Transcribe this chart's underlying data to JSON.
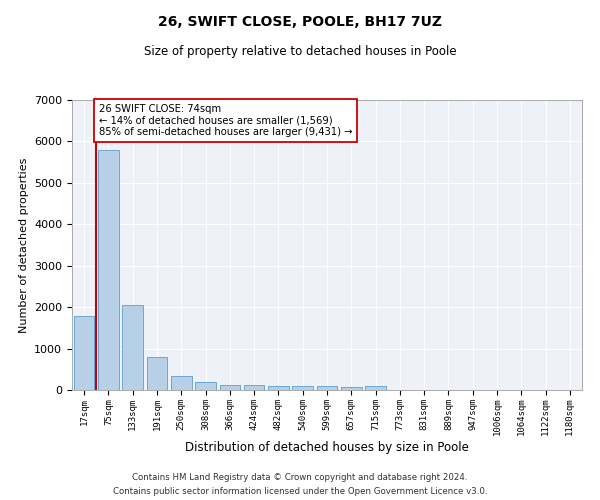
{
  "title": "26, SWIFT CLOSE, POOLE, BH17 7UZ",
  "subtitle": "Size of property relative to detached houses in Poole",
  "xlabel": "Distribution of detached houses by size in Poole",
  "ylabel": "Number of detached properties",
  "categories": [
    "17sqm",
    "75sqm",
    "133sqm",
    "191sqm",
    "250sqm",
    "308sqm",
    "366sqm",
    "424sqm",
    "482sqm",
    "540sqm",
    "599sqm",
    "657sqm",
    "715sqm",
    "773sqm",
    "831sqm",
    "889sqm",
    "947sqm",
    "1006sqm",
    "1064sqm",
    "1122sqm",
    "1180sqm"
  ],
  "values": [
    1780,
    5800,
    2060,
    800,
    340,
    195,
    115,
    110,
    95,
    90,
    85,
    80,
    95,
    0,
    0,
    0,
    0,
    0,
    0,
    0,
    0
  ],
  "bar_color": "#b8cfe8",
  "bar_edge_color": "#5a9fd4",
  "vline_x": 0.5,
  "vline_color": "#cc0000",
  "annotation_text": "26 SWIFT CLOSE: 74sqm\n← 14% of detached houses are smaller (1,569)\n85% of semi-detached houses are larger (9,431) →",
  "annotation_box_color": "#ffffff",
  "annotation_box_edge_color": "#cc0000",
  "ylim": [
    0,
    7000
  ],
  "yticks": [
    0,
    1000,
    2000,
    3000,
    4000,
    5000,
    6000,
    7000
  ],
  "background_color": "#eef2f8",
  "grid_color": "#ffffff",
  "footer_line1": "Contains HM Land Registry data © Crown copyright and database right 2024.",
  "footer_line2": "Contains public sector information licensed under the Open Government Licence v3.0."
}
